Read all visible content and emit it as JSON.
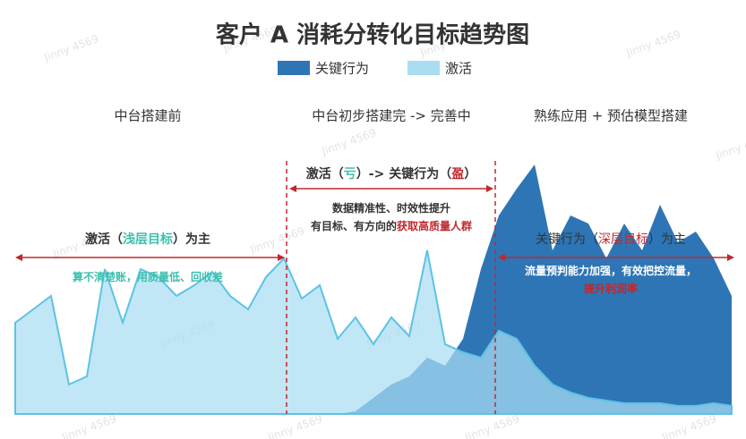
{
  "chart_data": {
    "type": "area",
    "title": "客户 A 消耗分转化目标趋势图",
    "watermark": "Jinny 4569",
    "x": [
      0,
      1,
      2,
      3,
      4,
      5,
      6,
      7,
      8,
      9,
      10,
      11,
      12,
      13,
      14,
      15,
      16,
      17,
      18,
      19,
      20,
      21,
      22,
      23,
      24,
      25,
      26,
      27,
      28,
      29,
      30,
      31,
      32,
      33,
      34,
      35,
      36,
      37,
      38,
      39,
      40
    ],
    "xlim": [
      0,
      40
    ],
    "ylim": [
      0,
      100
    ],
    "series": [
      {
        "name": "关键行为",
        "color": "#2e75b6",
        "values": [
          null,
          null,
          null,
          null,
          null,
          null,
          null,
          null,
          null,
          null,
          null,
          null,
          null,
          null,
          null,
          null,
          null,
          null,
          0,
          1,
          6,
          11,
          14,
          21,
          18,
          28,
          54,
          74,
          84,
          93,
          61,
          74,
          71,
          58,
          71,
          61,
          78,
          64,
          68,
          58,
          44
        ]
      },
      {
        "name": "激活",
        "color": "#a9def2",
        "values": [
          34,
          39,
          44,
          11,
          14,
          54,
          34,
          54,
          51,
          44,
          48,
          53,
          44,
          39,
          51,
          58,
          43,
          48,
          28,
          36,
          26,
          36,
          29,
          61,
          26,
          23,
          21,
          31,
          28,
          18,
          11,
          8,
          6,
          5,
          4,
          4,
          4,
          3,
          3,
          4,
          3
        ]
      }
    ],
    "phases": [
      "中台搭建前",
      "中台初步搭建完 -> 完善中",
      "熟练应用 + 预估模型搭建"
    ],
    "annotations": [
      {
        "parts": [
          {
            "text": "激活（"
          },
          {
            "text": "浅层目标",
            "color": "#3cbfae"
          },
          {
            "text": "）为主"
          }
        ]
      },
      {
        "parts": [
          {
            "text": "算不清楚账，用质量低、回收差",
            "color": "#3cbfae"
          }
        ]
      },
      {
        "parts": [
          {
            "text": "激活（"
          },
          {
            "text": "亏",
            "color": "#3cbfae"
          },
          {
            "text": "）-> 关键行为（"
          },
          {
            "text": "盈",
            "color": "#c0282d"
          },
          {
            "text": "）"
          }
        ]
      },
      {
        "parts": [
          {
            "text": "数据精准性、时效性提升"
          }
        ]
      },
      {
        "parts": [
          {
            "text": "有目标、有方向的"
          },
          {
            "text": "获取高质量人群",
            "color": "#c0282d"
          }
        ]
      },
      {
        "parts": [
          {
            "text": "关键行为（"
          },
          {
            "text": "深层目标",
            "color": "#c0282d"
          },
          {
            "text": "）为主"
          }
        ]
      },
      {
        "parts": [
          {
            "text": "流量预判能力加强，有效把控流量，",
            "color": "#ffffff"
          }
        ]
      },
      {
        "parts": [
          {
            "text": "提升利润率",
            "color": "#c0282d"
          }
        ]
      }
    ]
  }
}
